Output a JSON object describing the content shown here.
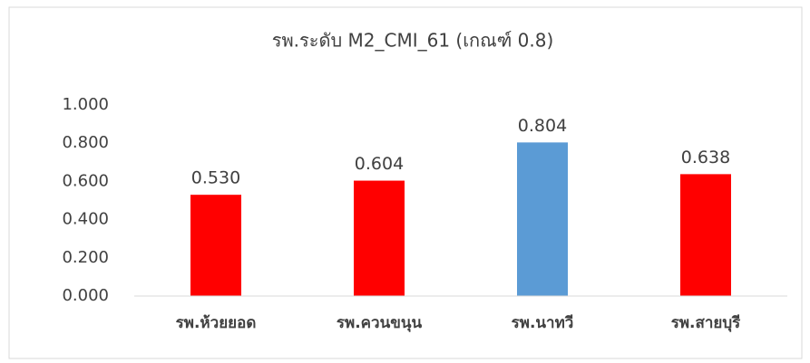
{
  "chart_data": {
    "type": "bar",
    "title": "รพ.ระดับ M2_CMI_61 (เกณฑ์ 0.8)",
    "categories": [
      "รพ.ห้วยยอด",
      "รพ.ควนขนุน",
      "รพ.นาทวี",
      "รพ.สายบุรี"
    ],
    "values": [
      0.53,
      0.604,
      0.804,
      0.638
    ],
    "value_labels": [
      "0.530",
      "0.604",
      "0.804",
      "0.638"
    ],
    "colors": [
      "#ff0000",
      "#ff0000",
      "#5b9bd5",
      "#ff0000"
    ],
    "ylim": [
      0,
      1
    ],
    "yticks": [
      {
        "value": 0,
        "label": "0.000"
      },
      {
        "value": 0.2,
        "label": "0.200"
      },
      {
        "value": 0.4,
        "label": "0.400"
      },
      {
        "value": 0.6,
        "label": "0.600"
      },
      {
        "value": 0.8,
        "label": "0.800"
      },
      {
        "value": 1,
        "label": "1.000"
      }
    ],
    "grid": false
  }
}
